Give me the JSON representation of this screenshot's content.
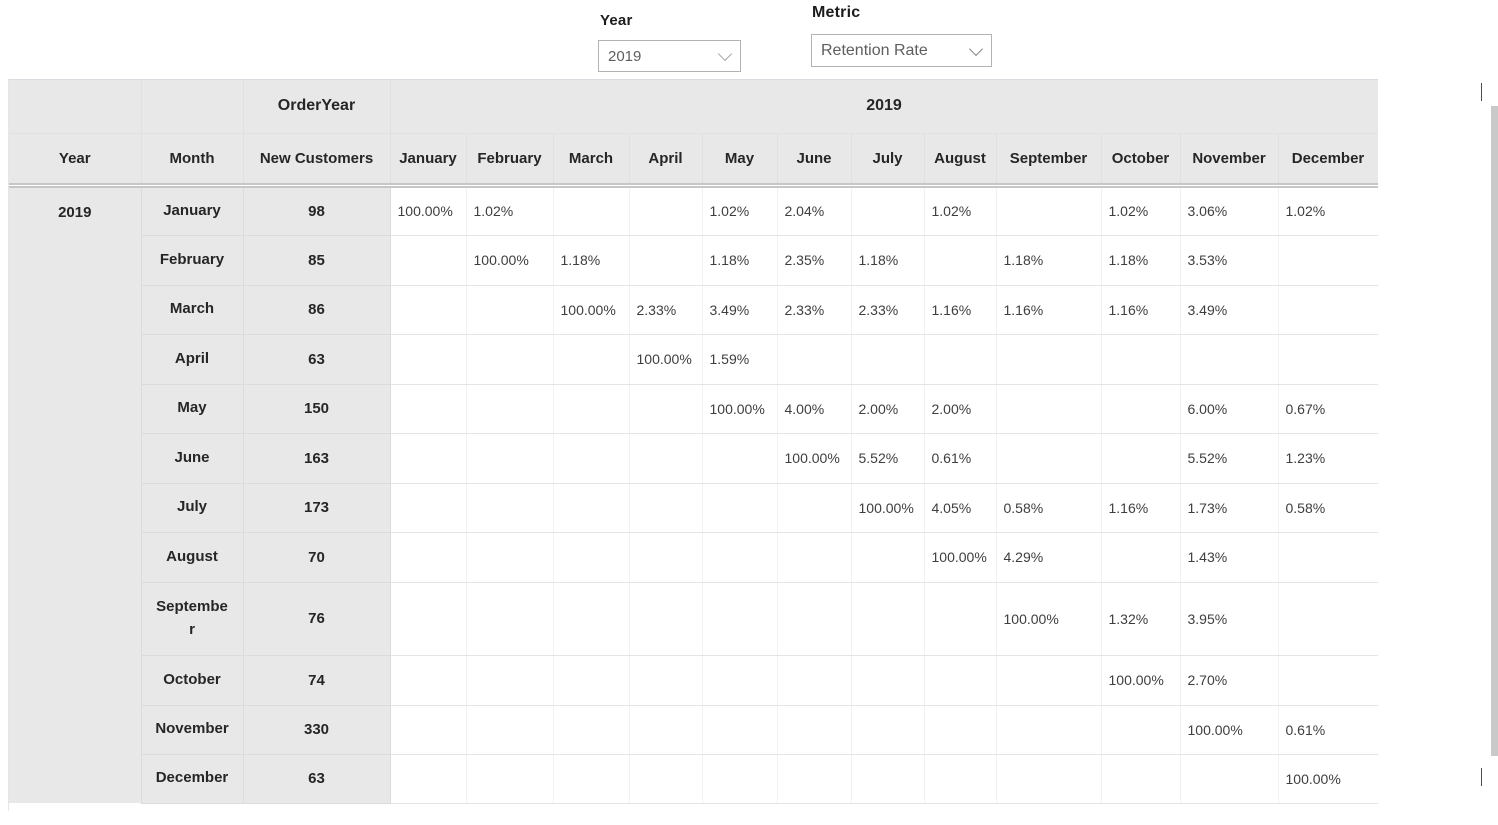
{
  "slicers": {
    "year": {
      "label": "Year",
      "value": "2019"
    },
    "metric": {
      "label": "Metric",
      "value": "Retention Rate"
    }
  },
  "matrix": {
    "order_year_label": "OrderYear",
    "year_group_label": "2019",
    "row_headers": {
      "year": "Year",
      "month": "Month",
      "new_customers": "New Customers"
    },
    "month_columns": [
      "January",
      "February",
      "March",
      "April",
      "May",
      "June",
      "July",
      "August",
      "September",
      "October",
      "November",
      "December"
    ],
    "year_value": "2019",
    "rows": [
      {
        "month": "January",
        "new_customers": "98",
        "values": [
          "100.00%",
          "1.02%",
          "",
          "",
          "1.02%",
          "2.04%",
          "",
          "1.02%",
          "",
          "1.02%",
          "3.06%",
          "1.02%"
        ]
      },
      {
        "month": "February",
        "new_customers": "85",
        "values": [
          "",
          "100.00%",
          "1.18%",
          "",
          "1.18%",
          "2.35%",
          "1.18%",
          "",
          "1.18%",
          "1.18%",
          "3.53%",
          ""
        ]
      },
      {
        "month": "March",
        "new_customers": "86",
        "values": [
          "",
          "",
          "100.00%",
          "2.33%",
          "3.49%",
          "2.33%",
          "2.33%",
          "1.16%",
          "1.16%",
          "1.16%",
          "3.49%",
          ""
        ]
      },
      {
        "month": "April",
        "new_customers": "63",
        "values": [
          "",
          "",
          "",
          "100.00%",
          "1.59%",
          "",
          "",
          "",
          "",
          "",
          "",
          ""
        ]
      },
      {
        "month": "May",
        "new_customers": "150",
        "values": [
          "",
          "",
          "",
          "",
          "100.00%",
          "4.00%",
          "2.00%",
          "2.00%",
          "",
          "",
          "6.00%",
          "0.67%"
        ]
      },
      {
        "month": "June",
        "new_customers": "163",
        "values": [
          "",
          "",
          "",
          "",
          "",
          "100.00%",
          "5.52%",
          "0.61%",
          "",
          "",
          "5.52%",
          "1.23%"
        ]
      },
      {
        "month": "July",
        "new_customers": "173",
        "values": [
          "",
          "",
          "",
          "",
          "",
          "",
          "100.00%",
          "4.05%",
          "0.58%",
          "1.16%",
          "1.73%",
          "0.58%"
        ]
      },
      {
        "month": "August",
        "new_customers": "70",
        "values": [
          "",
          "",
          "",
          "",
          "",
          "",
          "",
          "100.00%",
          "4.29%",
          "",
          "1.43%",
          ""
        ]
      },
      {
        "month": "September",
        "new_customers": "76",
        "values": [
          "",
          "",
          "",
          "",
          "",
          "",
          "",
          "",
          "100.00%",
          "1.32%",
          "3.95%",
          ""
        ]
      },
      {
        "month": "October",
        "new_customers": "74",
        "values": [
          "",
          "",
          "",
          "",
          "",
          "",
          "",
          "",
          "",
          "100.00%",
          "2.70%",
          ""
        ]
      },
      {
        "month": "November",
        "new_customers": "330",
        "values": [
          "",
          "",
          "",
          "",
          "",
          "",
          "",
          "",
          "",
          "",
          "100.00%",
          "0.61%"
        ]
      },
      {
        "month": "December",
        "new_customers": "63",
        "values": [
          "",
          "",
          "",
          "",
          "",
          "",
          "",
          "",
          "",
          "",
          "",
          "100.00%"
        ]
      }
    ]
  },
  "colors": {
    "header_bg": "#e8e8e8",
    "header_text": "#262626",
    "value_text": "#3e3e3e",
    "slicer_text": "#605e5c",
    "slicer_border": "#b3b3b3",
    "scrollbar_track": "#c9c9c9"
  }
}
